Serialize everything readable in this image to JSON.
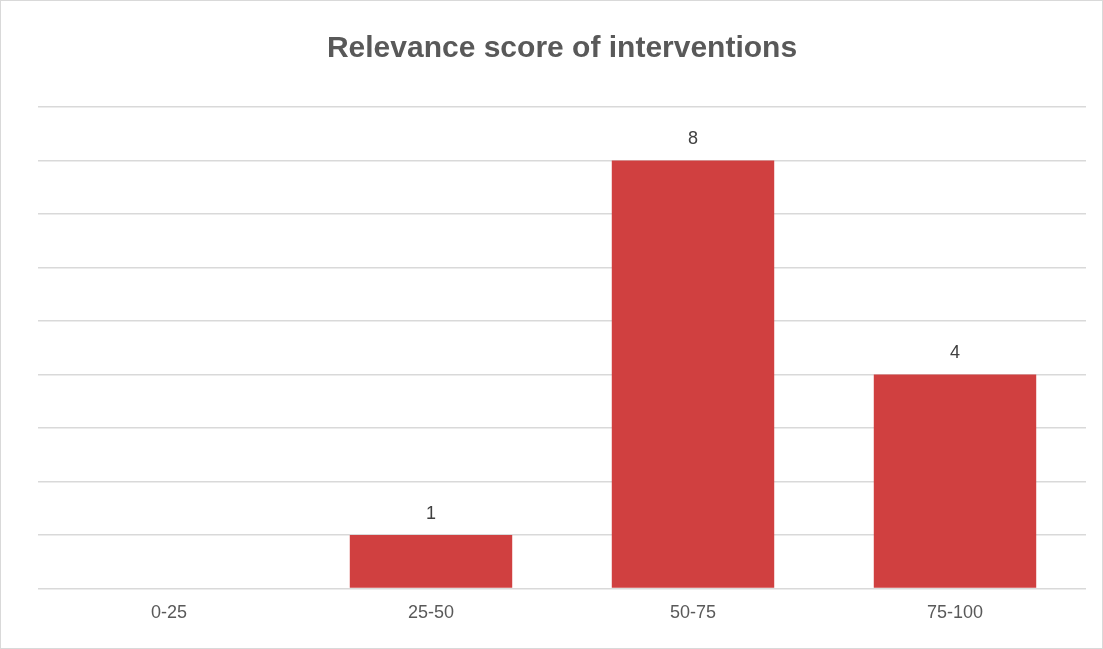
{
  "chart_data": {
    "type": "bar",
    "title": "Relevance score of interventions",
    "categories": [
      "0-25",
      "25-50",
      "50-75",
      "75-100"
    ],
    "values": [
      0,
      1,
      8,
      4
    ],
    "color": "#d04040",
    "value_labels": [
      null,
      "1",
      "8",
      "4"
    ],
    "ylim": [
      0,
      9
    ],
    "yticks": [
      {
        "value": 0,
        "label": null
      },
      {
        "value": 1,
        "label": null
      },
      {
        "value": 2,
        "label": null
      },
      {
        "value": 3,
        "label": null
      },
      {
        "value": 4,
        "label": null
      },
      {
        "value": 5,
        "label": null
      },
      {
        "value": 6,
        "label": null
      },
      {
        "value": 7,
        "label": null
      },
      {
        "value": 8,
        "label": null
      },
      {
        "value": 9,
        "label": null
      }
    ],
    "grid": "y",
    "legend": false,
    "tick_labels": "x"
  }
}
